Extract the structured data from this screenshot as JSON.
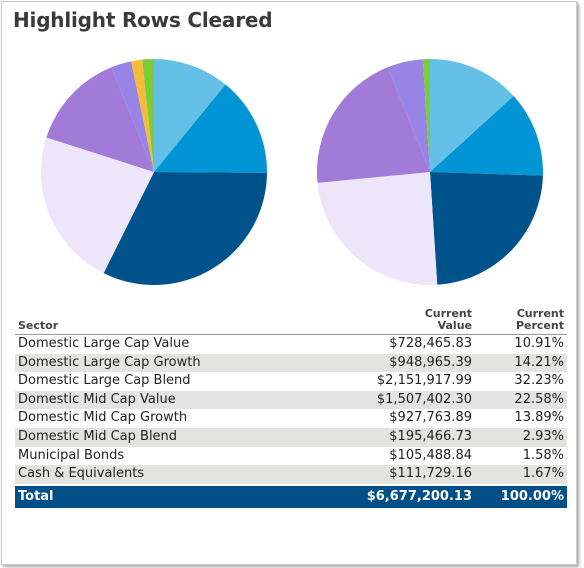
{
  "title": "Highlight Rows Cleared",
  "colors": {
    "slices": [
      "#64c0e6",
      "#0195d6",
      "#00538a",
      "#ede6fa",
      "#a27ad8",
      "#9883e6",
      "#f3bd3a",
      "#7ccb3a"
    ],
    "total_bg": "#005087",
    "alt_row": "#e3e3e1"
  },
  "table": {
    "headers": {
      "sector": "Sector",
      "value": [
        "Current",
        "Value"
      ],
      "percent": [
        "Current",
        "Percent"
      ]
    },
    "rows": [
      {
        "sector": "Domestic Large Cap Value",
        "value": "$728,465.83",
        "percent": "10.91%"
      },
      {
        "sector": "Domestic Large Cap Growth",
        "value": "$948,965.39",
        "percent": "14.21%"
      },
      {
        "sector": "Domestic Large Cap Blend",
        "value": "$2,151,917.99",
        "percent": "32.23%"
      },
      {
        "sector": "Domestic Mid Cap Value",
        "value": "$1,507,402.30",
        "percent": "22.58%"
      },
      {
        "sector": "Domestic Mid Cap Growth",
        "value": "$927,763.89",
        "percent": "13.89%"
      },
      {
        "sector": "Domestic Mid Cap Blend",
        "value": "$195,466.73",
        "percent": "2.93%"
      },
      {
        "sector": "Municipal Bonds",
        "value": "$105,488.84",
        "percent": "1.58%"
      },
      {
        "sector": "Cash & Equivalents",
        "value": "$111,729.16",
        "percent": "1.67%"
      }
    ],
    "total": {
      "label": "Total",
      "value": "$6,677,200.13",
      "percent": "100.00%"
    }
  },
  "chart_data": [
    {
      "type": "pie",
      "categories": [
        "Domestic Large Cap Value",
        "Domestic Large Cap Growth",
        "Domestic Large Cap Blend",
        "Domestic Mid Cap Value",
        "Domestic Mid Cap Growth",
        "Domestic Mid Cap Blend",
        "Municipal Bonds",
        "Cash & Equivalents"
      ],
      "values": [
        10.91,
        14.21,
        32.23,
        22.58,
        13.89,
        2.93,
        1.58,
        1.67
      ]
    },
    {
      "type": "pie",
      "categories": [
        "Domestic Large Cap Value",
        "Domestic Large Cap Growth",
        "Domestic Large Cap Blend",
        "Domestic Mid Cap Value",
        "Domestic Mid Cap Growth",
        "Domestic Mid Cap Blend",
        "Cash & Equivalents"
      ],
      "values": [
        13,
        12,
        23,
        24,
        20,
        5,
        1
      ]
    }
  ]
}
